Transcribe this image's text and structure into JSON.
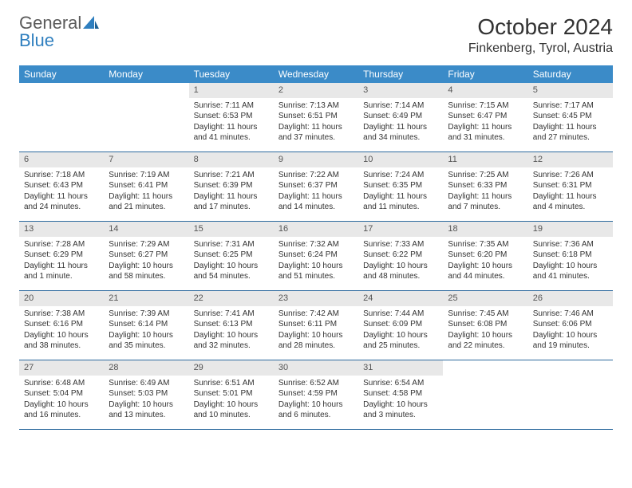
{
  "brand": {
    "part1": "General",
    "part2": "Blue"
  },
  "title": "October 2024",
  "location": "Finkenberg, Tyrol, Austria",
  "colors": {
    "header_bg": "#3b8bc8",
    "header_text": "#ffffff",
    "daynum_bg": "#e8e8e8",
    "daynum_text": "#555555",
    "rule": "#2d6a9e",
    "brand_gray": "#5a5a5a",
    "brand_blue": "#2f7fbf"
  },
  "dow": [
    "Sunday",
    "Monday",
    "Tuesday",
    "Wednesday",
    "Thursday",
    "Friday",
    "Saturday"
  ],
  "weeks": [
    [
      null,
      null,
      {
        "n": "1",
        "sr": "Sunrise: 7:11 AM",
        "ss": "Sunset: 6:53 PM",
        "dl": "Daylight: 11 hours and 41 minutes."
      },
      {
        "n": "2",
        "sr": "Sunrise: 7:13 AM",
        "ss": "Sunset: 6:51 PM",
        "dl": "Daylight: 11 hours and 37 minutes."
      },
      {
        "n": "3",
        "sr": "Sunrise: 7:14 AM",
        "ss": "Sunset: 6:49 PM",
        "dl": "Daylight: 11 hours and 34 minutes."
      },
      {
        "n": "4",
        "sr": "Sunrise: 7:15 AM",
        "ss": "Sunset: 6:47 PM",
        "dl": "Daylight: 11 hours and 31 minutes."
      },
      {
        "n": "5",
        "sr": "Sunrise: 7:17 AM",
        "ss": "Sunset: 6:45 PM",
        "dl": "Daylight: 11 hours and 27 minutes."
      }
    ],
    [
      {
        "n": "6",
        "sr": "Sunrise: 7:18 AM",
        "ss": "Sunset: 6:43 PM",
        "dl": "Daylight: 11 hours and 24 minutes."
      },
      {
        "n": "7",
        "sr": "Sunrise: 7:19 AM",
        "ss": "Sunset: 6:41 PM",
        "dl": "Daylight: 11 hours and 21 minutes."
      },
      {
        "n": "8",
        "sr": "Sunrise: 7:21 AM",
        "ss": "Sunset: 6:39 PM",
        "dl": "Daylight: 11 hours and 17 minutes."
      },
      {
        "n": "9",
        "sr": "Sunrise: 7:22 AM",
        "ss": "Sunset: 6:37 PM",
        "dl": "Daylight: 11 hours and 14 minutes."
      },
      {
        "n": "10",
        "sr": "Sunrise: 7:24 AM",
        "ss": "Sunset: 6:35 PM",
        "dl": "Daylight: 11 hours and 11 minutes."
      },
      {
        "n": "11",
        "sr": "Sunrise: 7:25 AM",
        "ss": "Sunset: 6:33 PM",
        "dl": "Daylight: 11 hours and 7 minutes."
      },
      {
        "n": "12",
        "sr": "Sunrise: 7:26 AM",
        "ss": "Sunset: 6:31 PM",
        "dl": "Daylight: 11 hours and 4 minutes."
      }
    ],
    [
      {
        "n": "13",
        "sr": "Sunrise: 7:28 AM",
        "ss": "Sunset: 6:29 PM",
        "dl": "Daylight: 11 hours and 1 minute."
      },
      {
        "n": "14",
        "sr": "Sunrise: 7:29 AM",
        "ss": "Sunset: 6:27 PM",
        "dl": "Daylight: 10 hours and 58 minutes."
      },
      {
        "n": "15",
        "sr": "Sunrise: 7:31 AM",
        "ss": "Sunset: 6:25 PM",
        "dl": "Daylight: 10 hours and 54 minutes."
      },
      {
        "n": "16",
        "sr": "Sunrise: 7:32 AM",
        "ss": "Sunset: 6:24 PM",
        "dl": "Daylight: 10 hours and 51 minutes."
      },
      {
        "n": "17",
        "sr": "Sunrise: 7:33 AM",
        "ss": "Sunset: 6:22 PM",
        "dl": "Daylight: 10 hours and 48 minutes."
      },
      {
        "n": "18",
        "sr": "Sunrise: 7:35 AM",
        "ss": "Sunset: 6:20 PM",
        "dl": "Daylight: 10 hours and 44 minutes."
      },
      {
        "n": "19",
        "sr": "Sunrise: 7:36 AM",
        "ss": "Sunset: 6:18 PM",
        "dl": "Daylight: 10 hours and 41 minutes."
      }
    ],
    [
      {
        "n": "20",
        "sr": "Sunrise: 7:38 AM",
        "ss": "Sunset: 6:16 PM",
        "dl": "Daylight: 10 hours and 38 minutes."
      },
      {
        "n": "21",
        "sr": "Sunrise: 7:39 AM",
        "ss": "Sunset: 6:14 PM",
        "dl": "Daylight: 10 hours and 35 minutes."
      },
      {
        "n": "22",
        "sr": "Sunrise: 7:41 AM",
        "ss": "Sunset: 6:13 PM",
        "dl": "Daylight: 10 hours and 32 minutes."
      },
      {
        "n": "23",
        "sr": "Sunrise: 7:42 AM",
        "ss": "Sunset: 6:11 PM",
        "dl": "Daylight: 10 hours and 28 minutes."
      },
      {
        "n": "24",
        "sr": "Sunrise: 7:44 AM",
        "ss": "Sunset: 6:09 PM",
        "dl": "Daylight: 10 hours and 25 minutes."
      },
      {
        "n": "25",
        "sr": "Sunrise: 7:45 AM",
        "ss": "Sunset: 6:08 PM",
        "dl": "Daylight: 10 hours and 22 minutes."
      },
      {
        "n": "26",
        "sr": "Sunrise: 7:46 AM",
        "ss": "Sunset: 6:06 PM",
        "dl": "Daylight: 10 hours and 19 minutes."
      }
    ],
    [
      {
        "n": "27",
        "sr": "Sunrise: 6:48 AM",
        "ss": "Sunset: 5:04 PM",
        "dl": "Daylight: 10 hours and 16 minutes."
      },
      {
        "n": "28",
        "sr": "Sunrise: 6:49 AM",
        "ss": "Sunset: 5:03 PM",
        "dl": "Daylight: 10 hours and 13 minutes."
      },
      {
        "n": "29",
        "sr": "Sunrise: 6:51 AM",
        "ss": "Sunset: 5:01 PM",
        "dl": "Daylight: 10 hours and 10 minutes."
      },
      {
        "n": "30",
        "sr": "Sunrise: 6:52 AM",
        "ss": "Sunset: 4:59 PM",
        "dl": "Daylight: 10 hours and 6 minutes."
      },
      {
        "n": "31",
        "sr": "Sunrise: 6:54 AM",
        "ss": "Sunset: 4:58 PM",
        "dl": "Daylight: 10 hours and 3 minutes."
      },
      null,
      null
    ]
  ]
}
